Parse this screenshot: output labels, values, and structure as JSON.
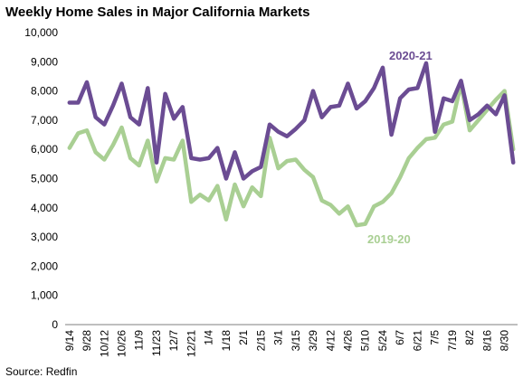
{
  "chart_data": {
    "type": "line",
    "title": "Weekly Home Sales in Major California Markets",
    "source": "Source: Redfin",
    "xlabel": "",
    "ylabel": "",
    "ylim": [
      0,
      10000
    ],
    "y_ticks": [
      0,
      1000,
      2000,
      3000,
      4000,
      5000,
      6000,
      7000,
      8000,
      9000,
      10000
    ],
    "y_tick_labels": [
      "0",
      "1,000",
      "2,000",
      "3,000",
      "4,000",
      "5,000",
      "6,000",
      "7,000",
      "8,000",
      "9,000",
      "10,000"
    ],
    "x_tick_labels": [
      "9/14",
      "9/28",
      "10/12",
      "10/26",
      "11/9",
      "11/23",
      "12/7",
      "12/21",
      "1/4",
      "1/18",
      "2/1",
      "2/15",
      "3/1",
      "3/15",
      "3/29",
      "4/12",
      "4/26",
      "5/10",
      "5/24",
      "6/7",
      "6/21",
      "7/5",
      "7/19",
      "8/2",
      "8/16",
      "8/30"
    ],
    "grid": false,
    "legend": "inline labels",
    "series": [
      {
        "name": "2020-21",
        "color": "#6b4c93",
        "values": [
          7600,
          7600,
          8300,
          7100,
          6850,
          7500,
          8250,
          7100,
          6850,
          8100,
          5550,
          7900,
          7050,
          7450,
          5700,
          5650,
          5700,
          6050,
          5000,
          5900,
          5000,
          5250,
          5400,
          6850,
          6600,
          6450,
          6700,
          7000,
          8000,
          7100,
          7450,
          7500,
          8250,
          7400,
          7650,
          8100,
          8800,
          6500,
          7750,
          8050,
          8100,
          8950,
          6600,
          7750,
          7650,
          8350,
          7000,
          7200,
          7500,
          7200,
          7850,
          5550
        ]
      },
      {
        "name": "2019-20",
        "color": "#a9cf93",
        "values": [
          6050,
          6550,
          6650,
          5900,
          5650,
          6150,
          6750,
          5700,
          5450,
          6300,
          4900,
          5700,
          5650,
          6300,
          4200,
          4450,
          4250,
          4750,
          3600,
          4800,
          4050,
          4700,
          4400,
          6400,
          5350,
          5600,
          5650,
          5300,
          5050,
          4250,
          4100,
          3800,
          4050,
          3400,
          3450,
          4050,
          4200,
          4500,
          5050,
          5700,
          6050,
          6350,
          6400,
          6850,
          6950,
          8250,
          6650,
          7000,
          7350,
          7700,
          8000,
          6000
        ]
      }
    ]
  }
}
